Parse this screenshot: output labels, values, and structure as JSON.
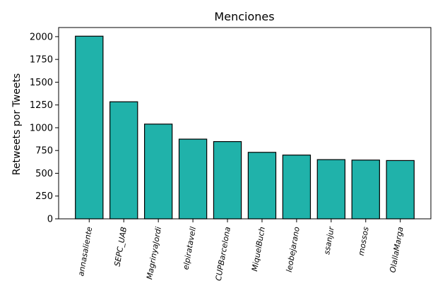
{
  "chart_data": {
    "type": "bar",
    "title": "Menciones",
    "xlabel": "",
    "ylabel": "Retweets por Tweets",
    "categories": [
      "annasaliente",
      "SEPC_UAB",
      "MagrinyaJordi",
      "elpiratavell",
      "CUPBarcelona",
      "MiquelBuch",
      "leobejarano",
      "ssanjur",
      "mossos",
      "OlallaMarga"
    ],
    "values": [
      2005,
      1285,
      1040,
      875,
      848,
      730,
      700,
      650,
      645,
      640
    ],
    "ylim": [
      0,
      2100
    ],
    "yticks": [
      0,
      250,
      500,
      750,
      1000,
      1250,
      1500,
      1750,
      2000
    ],
    "grid": false,
    "bar_color": "#20b2aa",
    "edge_color": "#000000"
  }
}
